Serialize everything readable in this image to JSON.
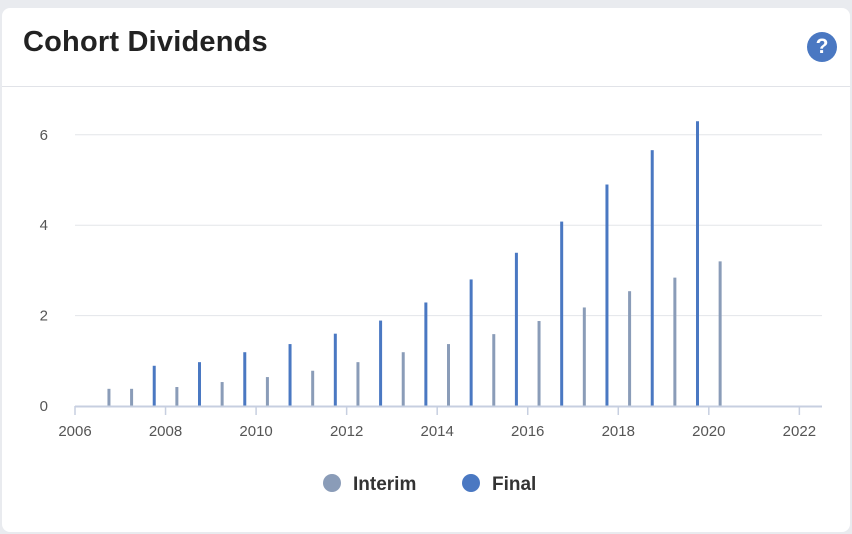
{
  "header": {
    "title": "Cohort Dividends",
    "help_icon": "question-circle-icon",
    "help_label": "?"
  },
  "colors": {
    "interim": "#8a9cb8",
    "final": "#4a78c2",
    "grid": "#e3e5e9",
    "axis": "#c7cfe0"
  },
  "chart_data": {
    "type": "bar",
    "title": "Cohort Dividends",
    "xlabel": "",
    "ylabel": "",
    "xlim": [
      2006,
      2022.5
    ],
    "ylim": [
      0,
      6.3
    ],
    "x_ticks": [
      "2006",
      "2008",
      "2010",
      "2012",
      "2014",
      "2016",
      "2018",
      "2020",
      "2022"
    ],
    "y_ticks": [
      "0",
      "2",
      "4",
      "6"
    ],
    "grid": true,
    "legend_position": "bottom",
    "series": [
      {
        "name": "Interim",
        "color": "#8a9cb8",
        "points": [
          {
            "x": 2006.75,
            "y": 0.38
          },
          {
            "x": 2007.25,
            "y": 0.38
          },
          {
            "x": 2008.25,
            "y": 0.42
          },
          {
            "x": 2009.25,
            "y": 0.53
          },
          {
            "x": 2010.25,
            "y": 0.64
          },
          {
            "x": 2011.25,
            "y": 0.78
          },
          {
            "x": 2012.25,
            "y": 0.97
          },
          {
            "x": 2013.25,
            "y": 1.19
          },
          {
            "x": 2014.25,
            "y": 1.37
          },
          {
            "x": 2015.25,
            "y": 1.59
          },
          {
            "x": 2016.25,
            "y": 1.88
          },
          {
            "x": 2017.25,
            "y": 2.18
          },
          {
            "x": 2018.25,
            "y": 2.54
          },
          {
            "x": 2019.25,
            "y": 2.84
          },
          {
            "x": 2020.25,
            "y": 3.2
          }
        ]
      },
      {
        "name": "Final",
        "color": "#4a78c2",
        "points": [
          {
            "x": 2007.75,
            "y": 0.89
          },
          {
            "x": 2008.75,
            "y": 0.97
          },
          {
            "x": 2009.75,
            "y": 1.19
          },
          {
            "x": 2010.75,
            "y": 1.37
          },
          {
            "x": 2011.75,
            "y": 1.6
          },
          {
            "x": 2012.75,
            "y": 1.89
          },
          {
            "x": 2013.75,
            "y": 2.29
          },
          {
            "x": 2014.75,
            "y": 2.8
          },
          {
            "x": 2015.75,
            "y": 3.39
          },
          {
            "x": 2016.75,
            "y": 4.08
          },
          {
            "x": 2017.75,
            "y": 4.9
          },
          {
            "x": 2018.75,
            "y": 5.66
          },
          {
            "x": 2019.75,
            "y": 6.3
          }
        ]
      }
    ]
  }
}
